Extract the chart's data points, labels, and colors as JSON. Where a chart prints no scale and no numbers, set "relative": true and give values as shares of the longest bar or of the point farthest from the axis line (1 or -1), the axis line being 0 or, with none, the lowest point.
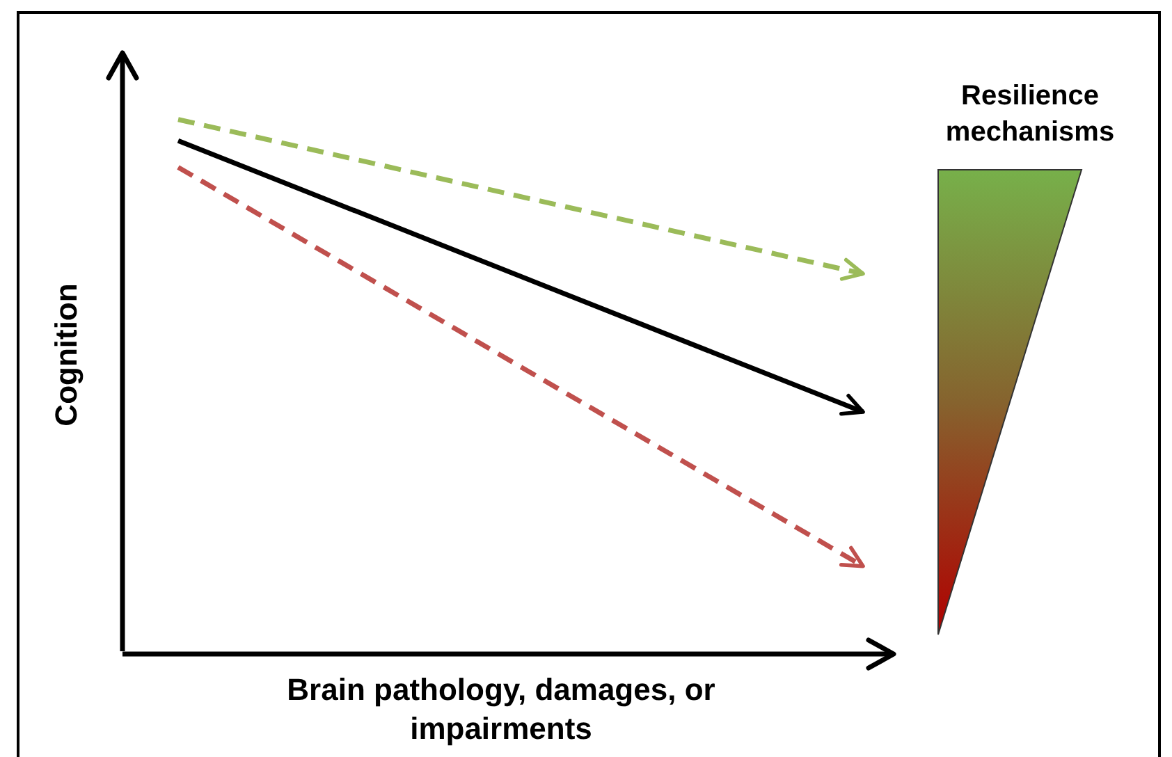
{
  "chart_data": {
    "type": "line",
    "relative": true,
    "xlabel": "Brain pathology, damages, or impairments",
    "ylabel": "Cognition",
    "categories": [
      null,
      null
    ],
    "grid": false,
    "legend": false,
    "series": [
      {
        "color": "#9bbb59",
        "line_style": "dashed",
        "values": [
          1,
          0.71
        ]
      },
      {
        "color": "#000000",
        "line_style": "solid",
        "values": [
          0.96,
          0.45
        ]
      },
      {
        "color": "#c0504d",
        "line_style": "dashed",
        "values": [
          0.91,
          0.16
        ]
      }
    ],
    "annotations": [
      "Resilience mechanisms"
    ]
  }
}
